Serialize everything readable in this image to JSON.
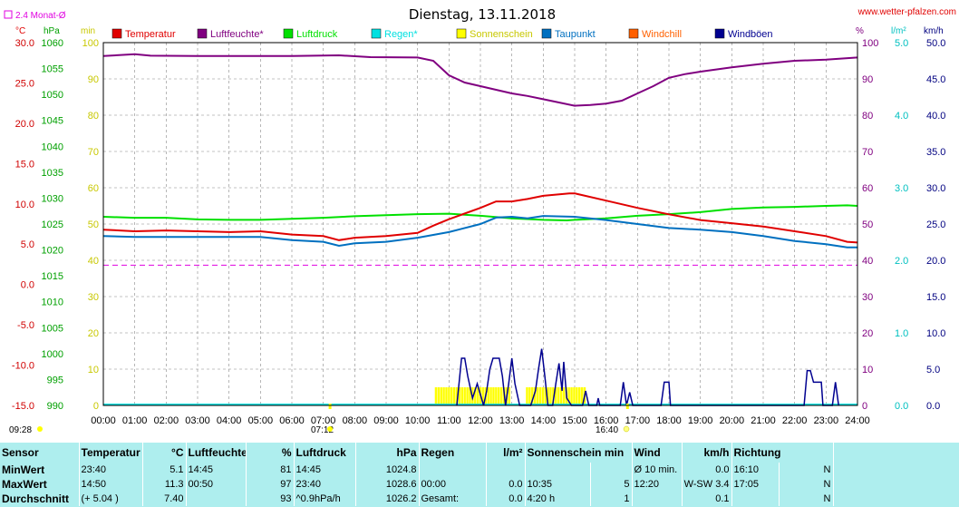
{
  "website": "www.wetter-pfalzen.com",
  "stats": {
    "headers": {
      "sensor": "Sensor",
      "temp": "Temperatur",
      "temp_unit": "°C",
      "hum": "Luftfeuchte",
      "hum_unit": "%",
      "press": "Luftdruck",
      "press_unit": "hPa",
      "rain": "Regen",
      "rain_unit": "l/m²",
      "sun": "Sonnenschein min",
      "wind": "Wind",
      "wind_unit": "km/h",
      "dir": "Richtung"
    },
    "min": {
      "label": "MinWert",
      "temp_time": "23:40",
      "temp_val": "5.1",
      "hum_time": "14:45",
      "hum_val": "81",
      "press_time": "14:45",
      "press_val": "1024.8",
      "rain_time": "",
      "rain_val": "",
      "sun_time": "",
      "sun_val": "",
      "wind_time": "Ø 10 min.",
      "wind_val": "0.0",
      "dir_time": "16:10",
      "dir_val": "N"
    },
    "max": {
      "label": "MaxWert",
      "temp_time": "14:50",
      "temp_val": "11.3",
      "hum_time": "00:50",
      "hum_val": "97",
      "press_time": "23:40",
      "press_val": "1028.6",
      "rain_time": "00:00",
      "rain_val": "0.0",
      "sun_time": "10:35",
      "sun_val": "5",
      "wind_time": "12:20",
      "wind_val": "W-SW 3.4",
      "dir_time": "17:05",
      "dir_val": "N"
    },
    "avg": {
      "label": "Durchschnitt",
      "temp_time": "(+ 5.04 )",
      "temp_val": "7.40",
      "hum_time": "",
      "hum_val": "93",
      "press_time": "^0.9hPa/h",
      "press_val": "1026.2",
      "rain_time": "Gesamt:",
      "rain_val": "0.0",
      "sun_time": "4:20 h",
      "sun_val": "1",
      "wind_time": "",
      "wind_val": "0.1",
      "dir_time": "",
      "dir_val": "N"
    }
  },
  "chart_data": {
    "type": "line",
    "title": "Dienstag, 13.11.2018",
    "monthly_avg_label": "2.4 Monat-Ø",
    "monthly_avg_temp": 2.4,
    "sunrise": "07:12",
    "sunset": "16:40",
    "sunrise_left": "09:28",
    "x_ticks": [
      "00:00",
      "01:00",
      "02:00",
      "03:00",
      "04:00",
      "05:00",
      "06:00",
      "07:00",
      "08:00",
      "09:00",
      "10:00",
      "11:00",
      "12:00",
      "13:00",
      "14:00",
      "15:00",
      "16:00",
      "17:00",
      "18:00",
      "19:00",
      "20:00",
      "21:00",
      "22:00",
      "23:00",
      "24:00"
    ],
    "axes": {
      "temp": {
        "unit": "°C",
        "ticks": [
          "30.0",
          "25.0",
          "20.0",
          "15.0",
          "10.0",
          "5.0",
          "0.0",
          "-5.0",
          "-10.0",
          "-15.0"
        ],
        "range": [
          -15,
          30
        ],
        "color": "#d00000"
      },
      "press": {
        "unit": "hPa",
        "ticks": [
          "1060",
          "1055",
          "1050",
          "1045",
          "1040",
          "1035",
          "1030",
          "1025",
          "1020",
          "1015",
          "1010",
          "1005",
          "1000",
          "995",
          "990"
        ],
        "range": [
          990,
          1060
        ],
        "color": "#00a000"
      },
      "min": {
        "unit": "min",
        "ticks": [
          "100",
          "90",
          "80",
          "70",
          "60",
          "50",
          "40",
          "30",
          "20",
          "10",
          "0"
        ],
        "range": [
          0,
          100
        ],
        "color": "#c8c800"
      },
      "hum": {
        "unit": "%",
        "ticks": [
          "100",
          "90",
          "80",
          "70",
          "60",
          "50",
          "40",
          "30",
          "20",
          "10",
          "0"
        ],
        "range": [
          0,
          100
        ],
        "color": "#800080"
      },
      "rain": {
        "unit": "l/m²",
        "ticks": [
          "5.0",
          "4.0",
          "3.0",
          "2.0",
          "1.0",
          "0.0"
        ],
        "range": [
          0,
          5
        ],
        "color": "#00c0c0"
      },
      "wind": {
        "unit": "km/h",
        "ticks": [
          "50.0",
          "45.0",
          "40.0",
          "35.0",
          "30.0",
          "25.0",
          "20.0",
          "15.0",
          "10.0",
          "5.0",
          "0.0"
        ],
        "range": [
          0,
          50
        ],
        "color": "#000080"
      }
    },
    "legend": [
      {
        "name": "Temperatur",
        "color": "#e00000"
      },
      {
        "name": "Luftfeuchte*",
        "color": "#800080"
      },
      {
        "name": "Luftdruck",
        "color": "#00e000"
      },
      {
        "name": "Regen*",
        "color": "#00e0e0"
      },
      {
        "name": "Sonnenschein",
        "color": "#ffff00"
      },
      {
        "name": "Taupunkt",
        "color": "#0070c0"
      },
      {
        "name": "Windchill",
        "color": "#ff6000"
      },
      {
        "name": "Windböen",
        "color": "#000090"
      }
    ],
    "series": [
      {
        "name": "Luftfeuchte*",
        "axis": "hum",
        "color": "#800080",
        "points": [
          [
            0,
            96.3
          ],
          [
            1,
            96.8
          ],
          [
            1.5,
            96.4
          ],
          [
            3,
            96.3
          ],
          [
            5,
            96.3
          ],
          [
            6,
            96.3
          ],
          [
            7.5,
            96.5
          ],
          [
            8.5,
            96
          ],
          [
            10,
            95.9
          ],
          [
            10.5,
            95
          ],
          [
            11,
            91
          ],
          [
            11.5,
            89
          ],
          [
            12,
            88
          ],
          [
            12.5,
            87
          ],
          [
            13,
            86
          ],
          [
            13.5,
            85.3
          ],
          [
            14,
            84.4
          ],
          [
            14.5,
            83.5
          ],
          [
            15,
            82.6
          ],
          [
            15.5,
            82.8
          ],
          [
            16,
            83.2
          ],
          [
            16.5,
            84
          ],
          [
            17,
            86
          ],
          [
            17.5,
            88
          ],
          [
            18,
            90.3
          ],
          [
            18.5,
            91.3
          ],
          [
            19,
            92
          ],
          [
            20,
            93.2
          ],
          [
            21,
            94.2
          ],
          [
            22,
            95
          ],
          [
            23,
            95.3
          ],
          [
            24,
            95.9
          ]
        ]
      },
      {
        "name": "Luftdruck",
        "axis": "press",
        "color": "#00e000",
        "points": [
          [
            0,
            1026.4
          ],
          [
            1,
            1026.2
          ],
          [
            2,
            1026.2
          ],
          [
            3,
            1025.9
          ],
          [
            4,
            1025.8
          ],
          [
            5,
            1025.8
          ],
          [
            6,
            1026
          ],
          [
            7,
            1026.2
          ],
          [
            8,
            1026.5
          ],
          [
            9,
            1026.7
          ],
          [
            10,
            1026.9
          ],
          [
            11,
            1027
          ],
          [
            12,
            1026.6
          ],
          [
            13,
            1026.1
          ],
          [
            14,
            1025.8
          ],
          [
            14.75,
            1025.7
          ],
          [
            15,
            1025.8
          ],
          [
            16,
            1026.1
          ],
          [
            17,
            1026.6
          ],
          [
            18,
            1026.9
          ],
          [
            19,
            1027.3
          ],
          [
            20,
            1027.9
          ],
          [
            21,
            1028.2
          ],
          [
            22,
            1028.3
          ],
          [
            23,
            1028.5
          ],
          [
            23.67,
            1028.6
          ],
          [
            24,
            1028.5
          ]
        ]
      },
      {
        "name": "Temperatur",
        "axis": "temp",
        "color": "#e00000",
        "points": [
          [
            0,
            6.8
          ],
          [
            1,
            6.6
          ],
          [
            2,
            6.7
          ],
          [
            3,
            6.6
          ],
          [
            4,
            6.5
          ],
          [
            5,
            6.6
          ],
          [
            6,
            6.2
          ],
          [
            7,
            6.0
          ],
          [
            7.5,
            5.5
          ],
          [
            8,
            5.8
          ],
          [
            9,
            6.0
          ],
          [
            10,
            6.4
          ],
          [
            10.5,
            7.3
          ],
          [
            11,
            8.1
          ],
          [
            12,
            9.5
          ],
          [
            12.5,
            10.3
          ],
          [
            13,
            10.3
          ],
          [
            13.5,
            10.6
          ],
          [
            14,
            11.0
          ],
          [
            14.83,
            11.3
          ],
          [
            15,
            11.3
          ],
          [
            16,
            10.4
          ],
          [
            17,
            9.5
          ],
          [
            18,
            8.7
          ],
          [
            19,
            8.0
          ],
          [
            20,
            7.6
          ],
          [
            21,
            7.2
          ],
          [
            22,
            6.6
          ],
          [
            23,
            6.0
          ],
          [
            23.67,
            5.3
          ],
          [
            24,
            5.2
          ]
        ]
      },
      {
        "name": "Taupunkt",
        "axis": "temp",
        "color": "#0070c0",
        "points": [
          [
            0,
            6.0
          ],
          [
            1,
            5.9
          ],
          [
            2,
            5.9
          ],
          [
            3,
            5.9
          ],
          [
            4,
            5.9
          ],
          [
            5,
            5.9
          ],
          [
            6,
            5.5
          ],
          [
            7,
            5.3
          ],
          [
            7.5,
            4.8
          ],
          [
            8,
            5.1
          ],
          [
            9,
            5.3
          ],
          [
            10,
            5.8
          ],
          [
            11,
            6.5
          ],
          [
            12,
            7.5
          ],
          [
            12.5,
            8.3
          ],
          [
            13,
            8.4
          ],
          [
            13.5,
            8.2
          ],
          [
            14,
            8.5
          ],
          [
            15,
            8.4
          ],
          [
            16,
            8.0
          ],
          [
            17,
            7.5
          ],
          [
            18,
            7.0
          ],
          [
            19,
            6.8
          ],
          [
            20,
            6.5
          ],
          [
            21,
            6.0
          ],
          [
            22,
            5.4
          ],
          [
            23,
            5.0
          ],
          [
            23.67,
            4.6
          ],
          [
            24,
            4.6
          ]
        ]
      }
    ],
    "monthly_avg_line": {
      "name": "2.4 Monat-Ø",
      "axis": "temp",
      "value": 2.4,
      "color": "#e000e0"
    },
    "sunshine": {
      "name": "Sonnenschein",
      "axis": "min",
      "color": "#ffff00",
      "intervals": [
        [
          10.55,
          12.95
        ],
        [
          13.45,
          15.3
        ]
      ],
      "value": 5
    },
    "wind_gusts": {
      "name": "Windböen",
      "axis": "wind",
      "color": "#000090",
      "points": [
        [
          11.25,
          0
        ],
        [
          11.4,
          6.5
        ],
        [
          11.5,
          6.5
        ],
        [
          11.6,
          4
        ],
        [
          11.75,
          1
        ],
        [
          11.9,
          3
        ],
        [
          12.1,
          0
        ],
        [
          12.2,
          2
        ],
        [
          12.3,
          5
        ],
        [
          12.4,
          6.5
        ],
        [
          12.6,
          6.5
        ],
        [
          12.7,
          4
        ],
        [
          12.8,
          0
        ],
        [
          12.9,
          3
        ],
        [
          13.0,
          6.5
        ],
        [
          13.1,
          3
        ],
        [
          13.25,
          0
        ],
        [
          13.6,
          0
        ],
        [
          13.75,
          2
        ],
        [
          13.85,
          5
        ],
        [
          13.95,
          7.8
        ],
        [
          14.05,
          4
        ],
        [
          14.15,
          0
        ],
        [
          14.3,
          0
        ],
        [
          14.4,
          3
        ],
        [
          14.5,
          5.8
        ],
        [
          14.6,
          2
        ],
        [
          14.65,
          6
        ],
        [
          14.75,
          1
        ],
        [
          14.9,
          0
        ],
        [
          15.25,
          0
        ],
        [
          15.35,
          2
        ],
        [
          15.45,
          0
        ],
        [
          15.7,
          0
        ],
        [
          15.75,
          1
        ],
        [
          15.8,
          0
        ],
        [
          16.45,
          0
        ],
        [
          16.55,
          3.2
        ],
        [
          16.65,
          0
        ],
        [
          16.75,
          1.8
        ],
        [
          16.85,
          0
        ],
        [
          17.75,
          0
        ],
        [
          17.85,
          3.2
        ],
        [
          18.0,
          3.2
        ],
        [
          18.05,
          0
        ],
        [
          22.3,
          0
        ],
        [
          22.4,
          4.8
        ],
        [
          22.5,
          4.8
        ],
        [
          22.6,
          3.2
        ],
        [
          22.85,
          3.2
        ],
        [
          22.9,
          0
        ],
        [
          23.2,
          0
        ],
        [
          23.3,
          3.2
        ],
        [
          23.4,
          0
        ]
      ]
    }
  }
}
